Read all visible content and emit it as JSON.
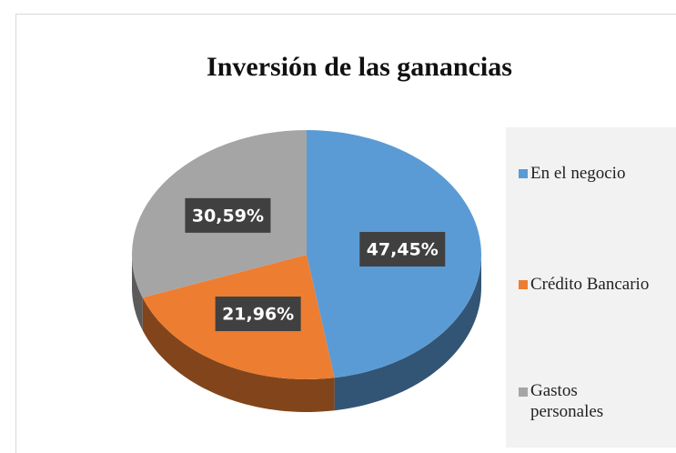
{
  "chart_data": {
    "type": "pie",
    "title": "Inversión de las ganancias",
    "categories": [
      "En el negocio",
      "Crédito Bancario",
      "Gastos personales"
    ],
    "values": [
      47.45,
      21.96,
      30.59
    ],
    "value_labels": [
      "47,45%",
      "21,96%",
      "30,59%"
    ],
    "colors": [
      "#5b9bd5",
      "#ed7d31",
      "#a5a5a5"
    ],
    "legend": "right"
  }
}
